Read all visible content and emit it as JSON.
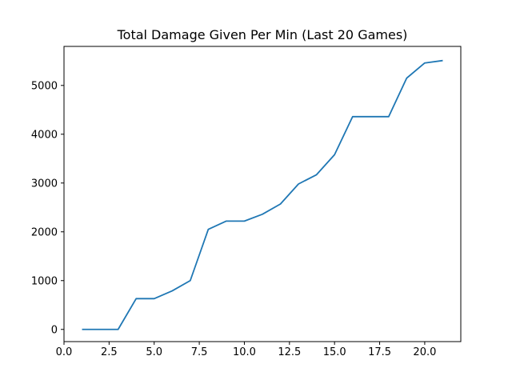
{
  "chart_data": {
    "type": "line",
    "title": "Total Damage Given Per Min (Last 20 Games)",
    "xlabel": "",
    "ylabel": "",
    "xlim": [
      0,
      22
    ],
    "ylim": [
      -250,
      5800
    ],
    "x_ticks": [
      0.0,
      2.5,
      5.0,
      7.5,
      10.0,
      12.5,
      15.0,
      17.5,
      20.0
    ],
    "x_tick_labels": [
      "0.0",
      "2.5",
      "5.0",
      "7.5",
      "10.0",
      "12.5",
      "15.0",
      "17.5",
      "20.0"
    ],
    "y_ticks": [
      0,
      1000,
      2000,
      3000,
      4000,
      5000
    ],
    "y_tick_labels": [
      "0",
      "1000",
      "2000",
      "3000",
      "4000",
      "5000"
    ],
    "grid": false,
    "legend": "none",
    "series": [
      {
        "color": "#1f77b4",
        "x": [
          1,
          2,
          3,
          4,
          5,
          6,
          7,
          8,
          9,
          10,
          11,
          12,
          13,
          14,
          15,
          16,
          17,
          18,
          19,
          20,
          21
        ],
        "y": [
          0,
          0,
          0,
          630,
          630,
          790,
          1000,
          2050,
          2220,
          2220,
          2360,
          2570,
          2980,
          3170,
          3580,
          4360,
          4360,
          4360,
          5150,
          5460,
          5510
        ]
      }
    ]
  }
}
